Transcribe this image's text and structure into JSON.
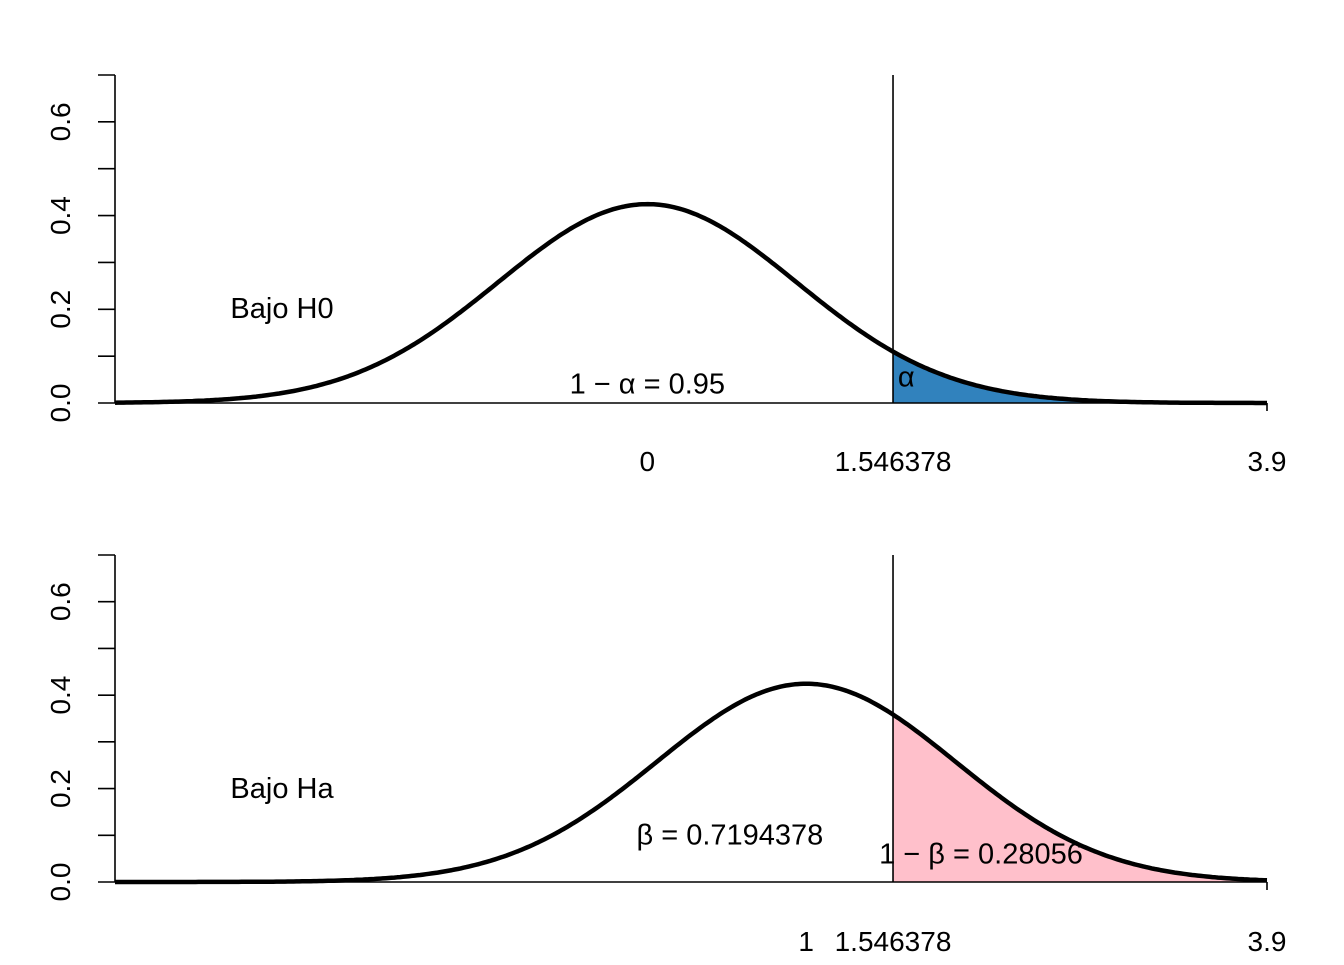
{
  "chart_data": [
    {
      "type": "area",
      "title": "",
      "xlabel": "",
      "ylabel": "",
      "ylim": [
        0,
        0.7
      ],
      "xlim_right": 3.9,
      "yticks": [
        0.0,
        0.2,
        0.4,
        0.6
      ],
      "ytick_labels": [
        "0.0",
        "0.2",
        "0.4",
        "0.6"
      ],
      "xticks": [
        0,
        1.546378,
        3.9
      ],
      "xtick_labels": [
        "0",
        "1.546378",
        "3.9"
      ],
      "curve": {
        "mean": 0,
        "sd": 0.94,
        "color": "#000000"
      },
      "critical_value": 1.546378,
      "shade": {
        "from": 1.546378,
        "to": 3.9,
        "color": "#3182bd"
      },
      "label": "Bajo H0",
      "annotations": [
        {
          "text": "1 − α = 0.95",
          "x": 0,
          "y": 0.02
        },
        {
          "text": "α",
          "x": 1.63,
          "y": 0.035
        }
      ]
    },
    {
      "type": "area",
      "title": "",
      "xlabel": "",
      "ylabel": "",
      "ylim": [
        0,
        0.7
      ],
      "xlim_right": 3.9,
      "yticks": [
        0.0,
        0.2,
        0.4,
        0.6
      ],
      "ytick_labels": [
        "0.0",
        "0.2",
        "0.4",
        "0.6"
      ],
      "xticks": [
        1,
        1.546378,
        3.9
      ],
      "xtick_labels": [
        "1",
        "1.546378",
        "3.9"
      ],
      "curve": {
        "mean": 1,
        "sd": 0.94,
        "color": "#000000"
      },
      "critical_value": 1.546378,
      "shade": {
        "from": 1.546378,
        "to": 3.9,
        "color": "#ffc0cb"
      },
      "label": "Bajo Ha",
      "annotations": [
        {
          "text": "β = 0.7194378",
          "x": 0.52,
          "y": 0.08
        },
        {
          "text": "1 − β = 0.28056",
          "x": 2.1,
          "y": 0.04
        }
      ]
    }
  ]
}
